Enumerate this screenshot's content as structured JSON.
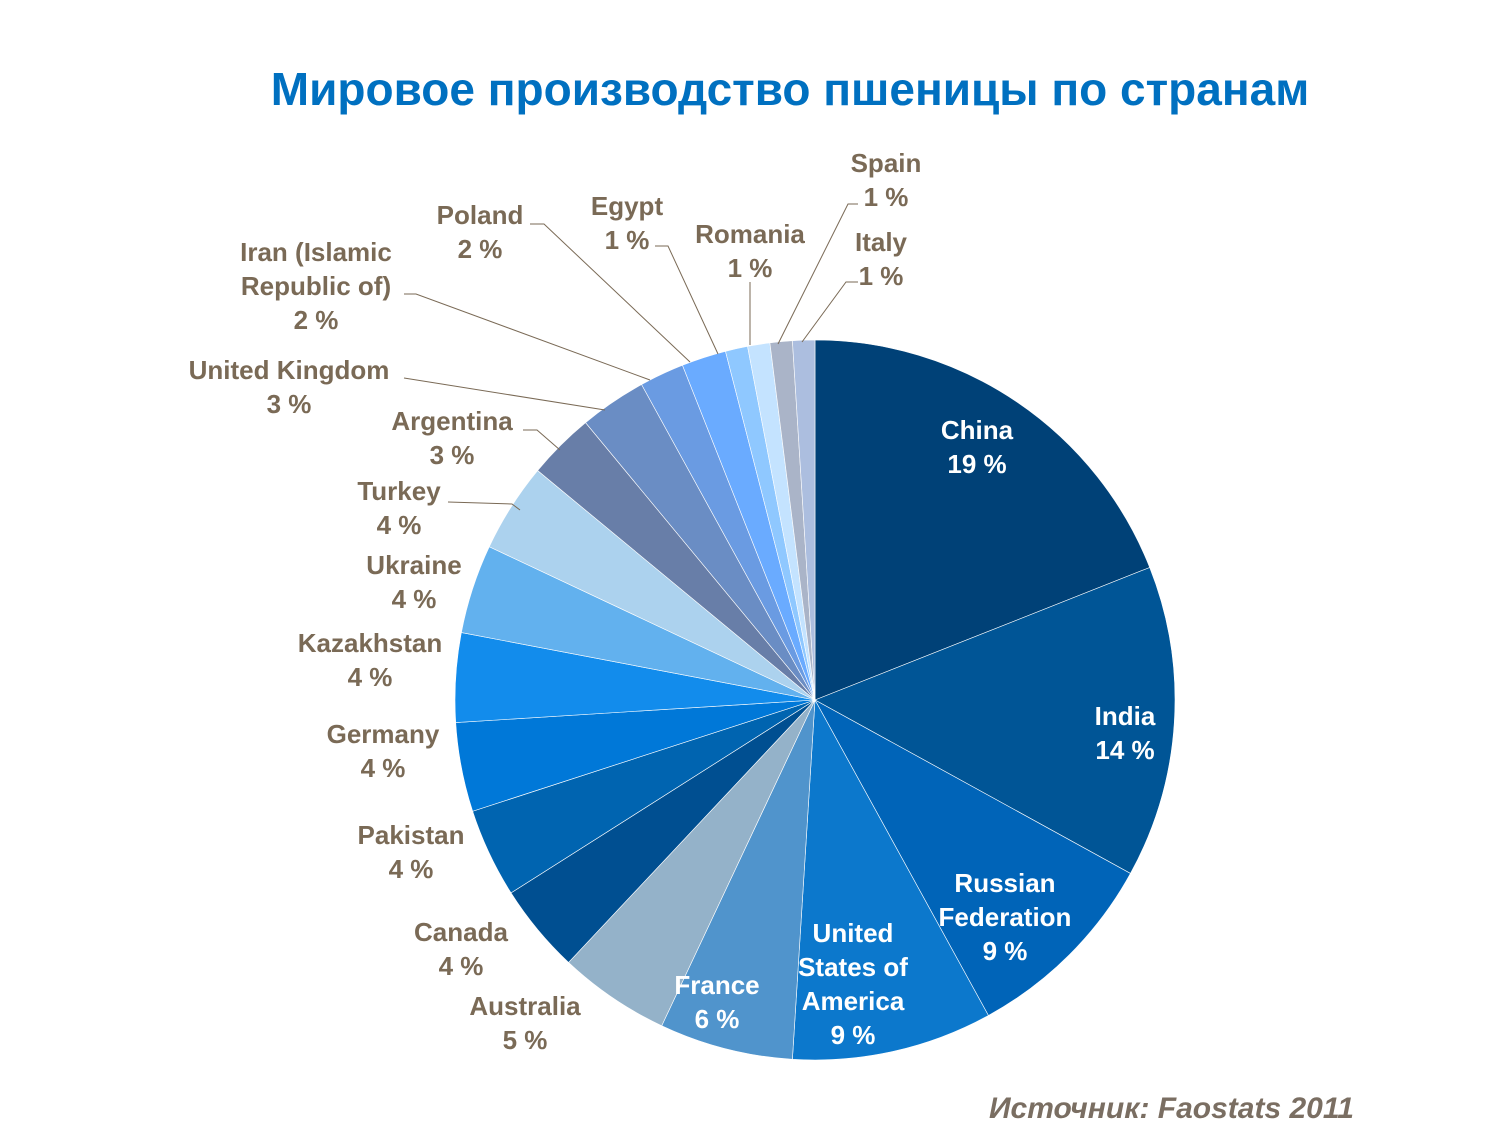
{
  "chart_data": {
    "type": "pie",
    "title": "Мировое производство пшеницы по странам",
    "source": "Источник: Faostats 2011",
    "unit": "%",
    "slices": [
      {
        "label": "China",
        "value": 19,
        "color": "#004177"
      },
      {
        "label": "India",
        "value": 14,
        "color": "#005596"
      },
      {
        "label": "Russian Federation",
        "value": 9,
        "color": "#0064b8"
      },
      {
        "label": "United States of America",
        "value": 9,
        "color": "#0c78cc"
      },
      {
        "label": "France",
        "value": 6,
        "color": "#5094cc"
      },
      {
        "label": "Australia",
        "value": 5,
        "color": "#94b2c9"
      },
      {
        "label": "Canada",
        "value": 4,
        "color": "#004f91"
      },
      {
        "label": "Pakistan",
        "value": 4,
        "color": "#0064b0"
      },
      {
        "label": "Germany",
        "value": 4,
        "color": "#0078d8"
      },
      {
        "label": "Kazakhstan",
        "value": 4,
        "color": "#128cec"
      },
      {
        "label": "Ukraine",
        "value": 4,
        "color": "#62b1ee"
      },
      {
        "label": "Turkey",
        "value": 4,
        "color": "#acd2ee"
      },
      {
        "label": "Argentina",
        "value": 3,
        "color": "#687ea8"
      },
      {
        "label": "United Kingdom",
        "value": 3,
        "color": "#6a8dc4"
      },
      {
        "label": "Iran (Islamic Republic of)",
        "value": 2,
        "color": "#6a9be2"
      },
      {
        "label": "Poland",
        "value": 2,
        "color": "#6aabff"
      },
      {
        "label": "Egypt",
        "value": 1,
        "color": "#8fc8ff"
      },
      {
        "label": "Romania",
        "value": 1,
        "color": "#c4e3ff"
      },
      {
        "label": "Spain",
        "value": 1,
        "color": "#aab4c8"
      },
      {
        "label": "Italy",
        "value": 1,
        "color": "#acbedf"
      }
    ],
    "inside_label_color": "#ffffff",
    "outside_label_color": "#7a6a56",
    "title_color": "#0070c0"
  }
}
